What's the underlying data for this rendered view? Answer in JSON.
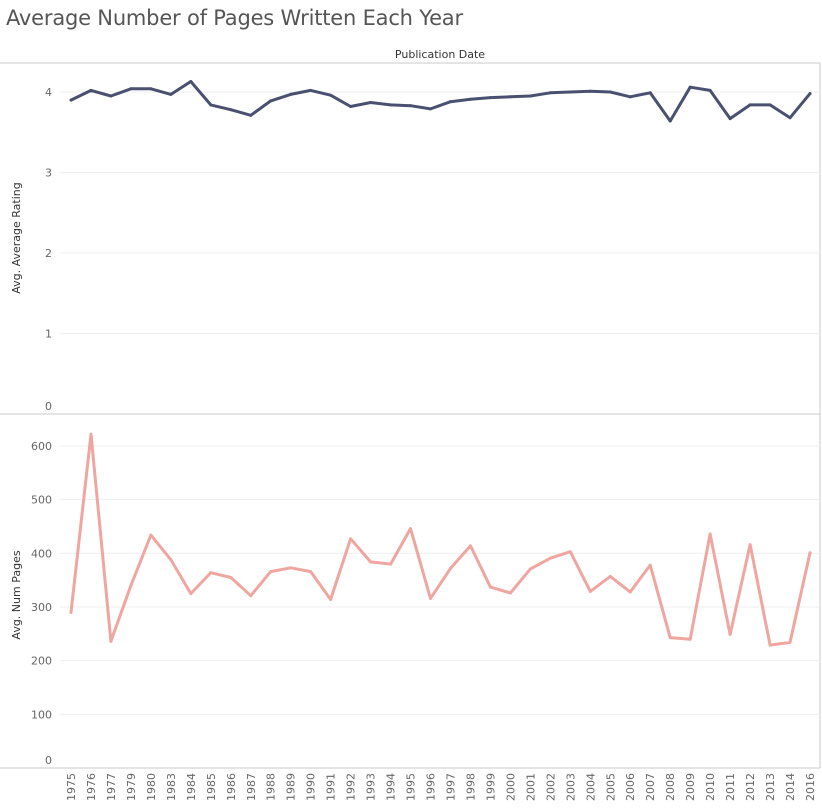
{
  "title": "Average Number of Pages Written Each Year",
  "column_header": "Publication Date",
  "chart_data": {
    "type": "line",
    "title": "Average Number of Pages Written Each Year",
    "xlabel": "Publication Date",
    "x": [
      "1975",
      "1976",
      "1977",
      "1979",
      "1980",
      "1983",
      "1984",
      "1985",
      "1986",
      "1987",
      "1988",
      "1989",
      "1990",
      "1991",
      "1992",
      "1993",
      "1994",
      "1995",
      "1996",
      "1997",
      "1998",
      "1999",
      "2000",
      "2001",
      "2002",
      "2003",
      "2004",
      "2005",
      "2006",
      "2007",
      "2008",
      "2009",
      "2010",
      "2011",
      "2012",
      "2013",
      "2014",
      "2016"
    ],
    "panels": [
      {
        "ylabel": "Avg. Average Rating",
        "ylim": [
          0,
          4.2
        ],
        "yticks": [
          "0",
          "1",
          "2",
          "3",
          "4"
        ],
        "series": [
          {
            "color": "#4a5170",
            "values": [
              3.9,
              4.02,
              3.95,
              4.04,
              4.04,
              3.97,
              4.13,
              3.84,
              3.78,
              3.71,
              3.89,
              3.97,
              4.02,
              3.96,
              3.82,
              3.87,
              3.84,
              3.83,
              3.79,
              3.88,
              3.91,
              3.93,
              3.94,
              3.95,
              3.99,
              4.0,
              4.01,
              4.0,
              3.94,
              3.99,
              3.64,
              4.06,
              4.02,
              3.67,
              3.84,
              3.84,
              3.68,
              3.98
            ]
          }
        ]
      },
      {
        "ylabel": "Avg. Num Pages",
        "ylim": [
          0,
          655
        ],
        "yticks": [
          "0",
          "100",
          "200",
          "300",
          "400",
          "500",
          "600"
        ],
        "series": [
          {
            "color": "#f0a6a0",
            "values": [
              290,
              622,
              236,
              340,
              434,
              388,
              325,
              364,
              355,
              321,
              366,
              373,
              366,
              314,
              427,
              384,
              380,
              446,
              316,
              372,
              414,
              337,
              326,
              371,
              391,
              403,
              329,
              357,
              328,
              378,
              243,
              240,
              436,
              249,
              416,
              229,
              234,
              401
            ]
          }
        ]
      }
    ],
    "grid": true,
    "legend": "none"
  }
}
